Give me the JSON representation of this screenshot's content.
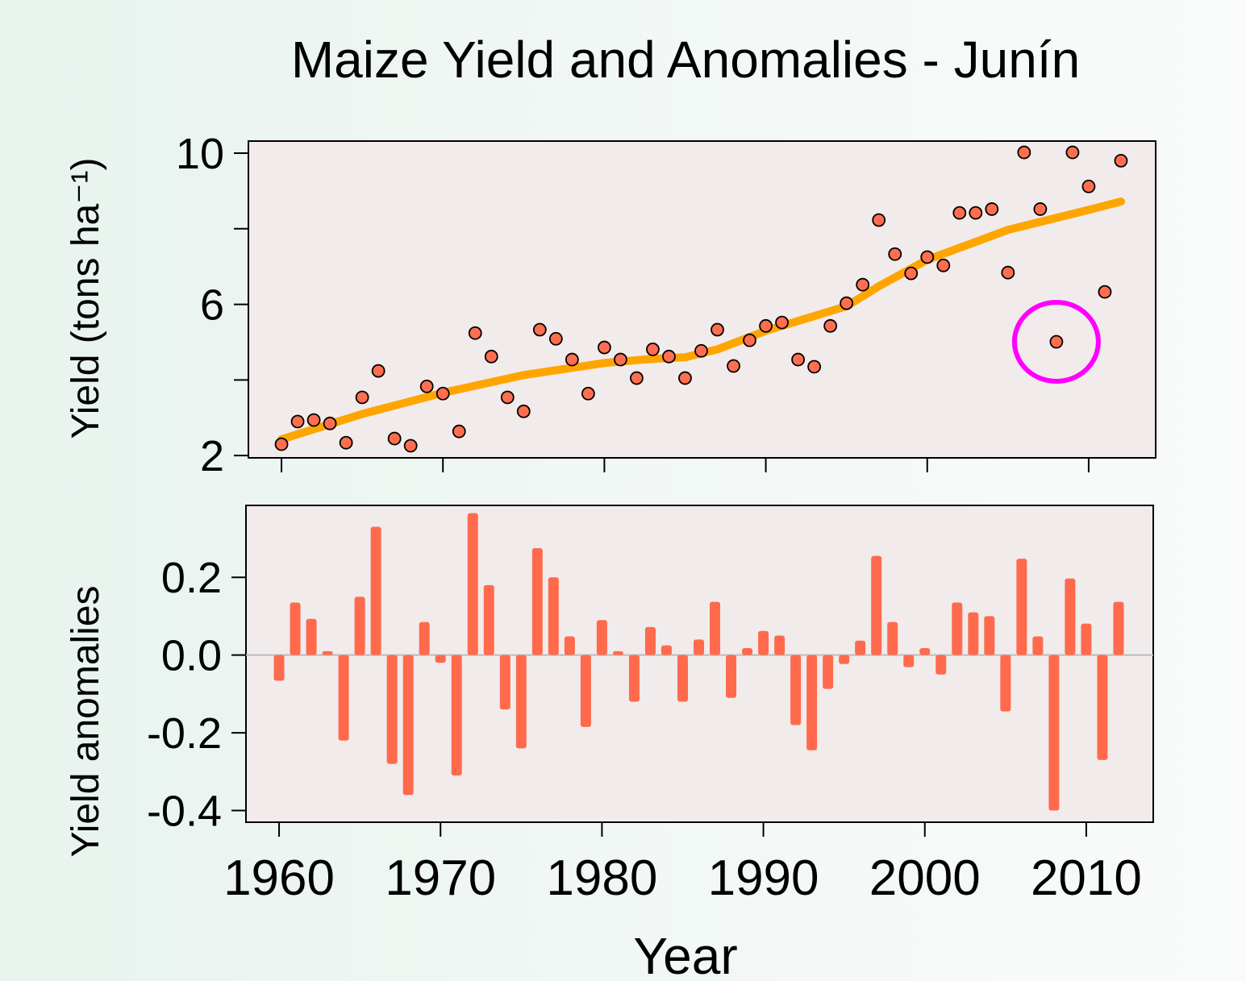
{
  "chart_data": [
    {
      "type": "scatter",
      "title": "Maize Yield and Anomalies - Junín",
      "y_label": "Yield (tons ha⁻¹)",
      "x": [
        1960,
        1961,
        1962,
        1963,
        1964,
        1965,
        1966,
        1967,
        1968,
        1969,
        1970,
        1971,
        1972,
        1973,
        1974,
        1975,
        1976,
        1977,
        1978,
        1979,
        1980,
        1981,
        1982,
        1983,
        1984,
        1985,
        1986,
        1987,
        1988,
        1989,
        1990,
        1991,
        1992,
        1993,
        1994,
        1995,
        1996,
        1997,
        1998,
        1999,
        2000,
        2001,
        2002,
        2003,
        2004,
        2005,
        2006,
        2007,
        2008,
        2009,
        2010,
        2011,
        2012
      ],
      "values": [
        2.3,
        2.9,
        2.94,
        2.85,
        2.34,
        3.54,
        4.24,
        2.45,
        2.26,
        3.83,
        3.64,
        2.64,
        5.24,
        4.62,
        3.54,
        3.17,
        5.33,
        5.09,
        4.54,
        3.64,
        4.86,
        4.54,
        4.05,
        4.81,
        4.62,
        4.05,
        4.77,
        5.33,
        4.37,
        5.05,
        5.43,
        5.52,
        4.54,
        4.35,
        5.43,
        6.03,
        6.52,
        8.23,
        7.33,
        6.82,
        7.25,
        7.03,
        8.42,
        8.42,
        8.52,
        6.84,
        10.02,
        8.52,
        5.01,
        10.02,
        9.12,
        6.33,
        9.8
      ],
      "color": "#ff6e4e",
      "trend": {
        "color": "#ffa500",
        "x": [
          1960,
          1965,
          1970,
          1975,
          1980,
          1983,
          1985,
          1987,
          1990,
          1995,
          1997,
          2000,
          2005,
          2010,
          2012
        ],
        "values": [
          2.43,
          3.1,
          3.66,
          4.13,
          4.45,
          4.56,
          4.6,
          4.81,
          5.3,
          5.95,
          6.48,
          7.18,
          7.97,
          8.5,
          8.72
        ]
      },
      "highlight": {
        "x": 2008,
        "color": "#ff00ff"
      },
      "xlim": [
        1957.95,
        2014.15
      ],
      "ylim": [
        1.94,
        10.32
      ],
      "xticks": [
        1960,
        1970,
        1980,
        1990,
        2000,
        2010
      ],
      "xtick_labels": false,
      "yticks": [
        2,
        6,
        10
      ],
      "minor_yticks": [
        4,
        8
      ]
    },
    {
      "type": "bar",
      "y_label": "Yield anomalies",
      "x_label": "Year",
      "x": [
        1960,
        1961,
        1962,
        1963,
        1964,
        1965,
        1966,
        1967,
        1968,
        1969,
        1970,
        1971,
        1972,
        1973,
        1974,
        1975,
        1976,
        1977,
        1978,
        1979,
        1980,
        1981,
        1982,
        1983,
        1984,
        1985,
        1986,
        1987,
        1988,
        1989,
        1990,
        1991,
        1992,
        1993,
        1994,
        1995,
        1996,
        1997,
        1998,
        1999,
        2000,
        2001,
        2002,
        2003,
        2004,
        2005,
        2006,
        2007,
        2008,
        2009,
        2010,
        2011,
        2012
      ],
      "values": [
        -0.066,
        0.135,
        0.093,
        0.01,
        -0.22,
        0.15,
        0.33,
        -0.28,
        -0.36,
        0.085,
        -0.02,
        -0.31,
        0.365,
        0.18,
        -0.14,
        -0.24,
        0.275,
        0.2,
        0.048,
        -0.185,
        0.09,
        0.01,
        -0.12,
        0.072,
        0.025,
        -0.12,
        0.04,
        0.137,
        -0.11,
        0.018,
        0.062,
        0.05,
        -0.18,
        -0.245,
        -0.087,
        -0.023,
        0.037,
        0.255,
        0.085,
        -0.031,
        0.018,
        -0.05,
        0.135,
        0.11,
        0.1,
        -0.145,
        0.248,
        0.048,
        -0.4,
        0.197,
        0.081,
        -0.27,
        0.137
      ],
      "color": "#ff6a4d",
      "baseline": 0,
      "xlim": [
        1957.95,
        2014.15
      ],
      "ylim": [
        -0.43,
        0.385
      ],
      "xticks": [
        1960,
        1970,
        1980,
        1990,
        2000,
        2010
      ],
      "xtick_labels": true,
      "yticks": [
        0.2,
        {
          "value": 0,
          "label": "0.0"
        },
        -0.2,
        -0.4
      ]
    }
  ]
}
